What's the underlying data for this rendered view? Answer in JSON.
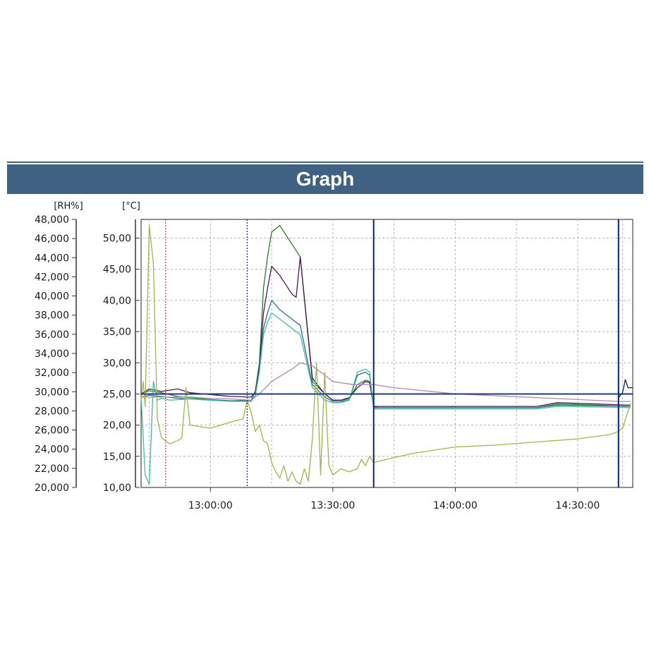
{
  "title": "Graph",
  "colors": {
    "banner": "#3f6283",
    "reference": "#1f3a8a",
    "marker": "#0b1f6b"
  },
  "chart_data": {
    "type": "line",
    "title": "Graph",
    "grid": true,
    "xaxis": {
      "range": [
        "12:43:00",
        "14:43:30"
      ],
      "ticks": [
        {
          "t": "13:00:00",
          "label": "13:00:00"
        },
        {
          "t": "13:30:00",
          "label": "13:30:00"
        },
        {
          "t": "14:00:00",
          "label": "14:00:00"
        },
        {
          "t": "14:30:00",
          "label": "14:30:00"
        }
      ],
      "minor_ticks": [
        "12:45:00",
        "13:15:00",
        "13:45:00",
        "14:15:00",
        "14:41:00"
      ]
    },
    "left_axis": {
      "unit": "[RH%]",
      "range": [
        20000,
        48000
      ],
      "ticks": [
        "20,000",
        "22,000",
        "24,000",
        "26,000",
        "28,000",
        "30,000",
        "32,000",
        "34,000",
        "36,000",
        "38,000",
        "40,000",
        "42,000",
        "44,000",
        "46,000",
        "48,000"
      ]
    },
    "right_axis": {
      "unit": "[°C]",
      "range": [
        10,
        53
      ],
      "ticks": [
        {
          "v": 10,
          "label": "10,00"
        },
        {
          "v": 15,
          "label": "15,00"
        },
        {
          "v": 20,
          "label": "20,00"
        },
        {
          "v": 25,
          "label": "25,00"
        },
        {
          "v": 30,
          "label": "30,00"
        },
        {
          "v": 35,
          "label": "35,00"
        },
        {
          "v": 40,
          "label": "40,00"
        },
        {
          "v": 45,
          "label": "45,00"
        },
        {
          "v": 50,
          "label": "50,00"
        }
      ]
    },
    "reference_line": {
      "y": 25.0,
      "color": "#1f3a8a"
    },
    "markers": [
      {
        "t": "12:49:00",
        "style": "dotted",
        "color": "#b04a4a"
      },
      {
        "t": "13:09:00",
        "style": "dotted",
        "color": "#1a2a60"
      },
      {
        "t": "13:40:00",
        "style": "solid",
        "color": "#0b1f6b"
      },
      {
        "t": "14:40:00",
        "style": "solid",
        "color": "#0b1f6b"
      }
    ],
    "series": [
      {
        "color": "#2e7d32",
        "t": [
          "12:43:00",
          "12:45:00",
          "12:48:00",
          "12:52:00",
          "12:55:00",
          "13:00:00",
          "13:05:00",
          "13:10:00",
          "13:11:00",
          "13:12:00",
          "13:13:00",
          "13:14:00",
          "13:15:00",
          "13:17:00",
          "13:19:00",
          "13:20:00",
          "13:21:00",
          "13:22:00",
          "13:25:00",
          "13:28:00",
          "13:30:00",
          "13:32:00",
          "13:34:00",
          "13:36:00",
          "13:38:00",
          "13:39:00",
          "13:40:00",
          "13:41:00",
          "13:45:00",
          "14:00:00",
          "14:20:00",
          "14:25:00",
          "14:35:00",
          "14:42:00",
          "14:43:00"
        ],
        "y": [
          25.0,
          25.5,
          25.2,
          24.6,
          24.4,
          24.1,
          23.9,
          24.0,
          25.5,
          30.0,
          42.0,
          47.0,
          51.0,
          52.0,
          50.0,
          49.0,
          48.0,
          47.0,
          27.0,
          25.0,
          24.0,
          24.0,
          24.2,
          26.5,
          27.2,
          27.0,
          23.0,
          22.8,
          22.8,
          22.8,
          22.8,
          23.4,
          23.2,
          23.0,
          23.0
        ]
      },
      {
        "color": "#4a1a4f",
        "t": [
          "12:43:00",
          "12:45:00",
          "12:48:00",
          "12:52:00",
          "12:55:00",
          "13:00:00",
          "13:05:00",
          "13:10:00",
          "13:11:00",
          "13:12:00",
          "13:13:00",
          "13:14:00",
          "13:15:00",
          "13:17:00",
          "13:19:00",
          "13:20:00",
          "13:21:00",
          "13:22:00",
          "13:25:00",
          "13:28:00",
          "13:30:00",
          "13:32:00",
          "13:34:00",
          "13:36:00",
          "13:38:00",
          "13:39:00",
          "13:40:00",
          "13:41:00",
          "13:45:00",
          "14:00:00",
          "14:20:00",
          "14:25:00",
          "14:35:00",
          "14:42:00",
          "14:43:00"
        ],
        "y": [
          25.0,
          25.8,
          25.4,
          25.8,
          25.2,
          24.9,
          24.6,
          24.5,
          25.3,
          29.5,
          38.0,
          42.0,
          45.5,
          44.0,
          42.0,
          41.0,
          40.5,
          47.0,
          27.5,
          25.0,
          24.0,
          24.0,
          24.4,
          26.0,
          27.0,
          26.8,
          23.0,
          23.0,
          23.0,
          23.0,
          23.0,
          23.6,
          23.4,
          23.2,
          23.2
        ]
      },
      {
        "color": "#2f6e8f",
        "t": [
          "12:43:00",
          "12:45:00",
          "12:48:00",
          "12:52:00",
          "12:55:00",
          "13:00:00",
          "13:05:00",
          "13:10:00",
          "13:11:00",
          "13:12:00",
          "13:13:00",
          "13:14:00",
          "13:15:00",
          "13:17:00",
          "13:19:00",
          "13:20:00",
          "13:21:00",
          "13:22:00",
          "13:25:00",
          "13:28:00",
          "13:30:00",
          "13:32:00",
          "13:34:00",
          "13:36:00",
          "13:38:00",
          "13:39:00",
          "13:40:00",
          "13:41:00",
          "13:45:00",
          "14:00:00",
          "14:20:00",
          "14:25:00",
          "14:35:00",
          "14:42:00",
          "14:43:00"
        ],
        "y": [
          24.5,
          24.8,
          24.6,
          24.3,
          24.2,
          24.0,
          23.9,
          23.9,
          24.8,
          29.0,
          35.5,
          38.0,
          40.0,
          38.5,
          37.5,
          37.0,
          36.5,
          36.0,
          26.5,
          24.5,
          23.8,
          23.8,
          24.0,
          28.0,
          28.5,
          28.0,
          22.8,
          22.8,
          22.8,
          22.8,
          22.8,
          23.2,
          23.1,
          23.0,
          23.0
        ]
      },
      {
        "color": "#3bbf9f",
        "t": [
          "12:43:00",
          "12:44:00",
          "12:45:00",
          "12:46:00",
          "12:47:00",
          "12:48:00",
          "12:50:00",
          "12:55:00",
          "13:00:00",
          "13:05:00",
          "13:10:00",
          "13:11:00",
          "13:12:00",
          "13:13:00",
          "13:14:00",
          "13:15:00",
          "13:17:00",
          "13:19:00",
          "13:20:00",
          "13:21:00",
          "13:22:00",
          "13:25:00",
          "13:28:00",
          "13:30:00",
          "13:32:00",
          "13:34:00",
          "13:36:00",
          "13:38:00",
          "13:39:00",
          "13:40:00",
          "13:41:00",
          "13:45:00",
          "14:00:00",
          "14:20:00",
          "14:25:00",
          "14:35:00",
          "14:42:00",
          "14:43:00"
        ],
        "y": [
          24.5,
          12.0,
          10.5,
          27.0,
          24.0,
          24.3,
          24.0,
          24.2,
          24.0,
          23.8,
          23.8,
          24.8,
          28.5,
          34.5,
          36.5,
          38.0,
          37.0,
          36.0,
          35.5,
          35.0,
          34.5,
          26.0,
          24.0,
          23.6,
          23.6,
          24.0,
          28.5,
          29.0,
          28.5,
          22.6,
          22.6,
          22.6,
          22.6,
          22.6,
          23.0,
          22.9,
          22.8,
          22.8
        ]
      },
      {
        "color": "#b08ab3",
        "t": [
          "12:43:00",
          "12:48:00",
          "12:55:00",
          "13:00:00",
          "13:05:00",
          "13:10:00",
          "13:12:00",
          "13:15:00",
          "13:20:00",
          "13:22:00",
          "13:25:00",
          "13:28:00",
          "13:30:00",
          "13:35:00",
          "13:40:00",
          "13:45:00",
          "14:00:00",
          "14:20:00",
          "14:40:00",
          "14:43:00"
        ],
        "y": [
          24.5,
          24.5,
          24.5,
          24.3,
          24.2,
          24.0,
          25.0,
          27.0,
          29.0,
          30.0,
          29.5,
          28.0,
          27.0,
          26.5,
          26.5,
          26.0,
          25.0,
          24.4,
          23.8,
          23.8
        ]
      },
      {
        "color": "#9fb54a",
        "t": [
          "12:43:00",
          "12:43:30",
          "12:44:00",
          "12:45:00",
          "12:46:00",
          "12:47:00",
          "12:48:00",
          "12:50:00",
          "12:52:00",
          "12:53:00",
          "12:54:00",
          "12:55:00",
          "13:00:00",
          "13:05:00",
          "13:08:00",
          "13:09:00",
          "13:10:00",
          "13:11:00",
          "13:12:00",
          "13:13:00",
          "13:14:00",
          "13:15:00",
          "13:16:00",
          "13:17:00",
          "13:18:00",
          "13:19:00",
          "13:20:00",
          "13:21:00",
          "13:22:00",
          "13:23:00",
          "13:24:00",
          "13:25:00",
          "13:26:00",
          "13:27:00",
          "13:28:00",
          "13:29:00",
          "13:30:00",
          "13:32:00",
          "13:34:00",
          "13:36:00",
          "13:37:00",
          "13:38:00",
          "13:39:00",
          "13:40:00",
          "13:45:00",
          "13:50:00",
          "14:00:00",
          "14:10:00",
          "14:20:00",
          "14:30:00",
          "14:38:00",
          "14:40:00",
          "14:41:00",
          "14:43:00"
        ],
        "y": [
          24.0,
          27.0,
          23.0,
          52.0,
          46.0,
          21.0,
          18.0,
          17.0,
          17.5,
          18.0,
          26.0,
          20.0,
          19.5,
          20.5,
          21.0,
          24.0,
          22.0,
          19.0,
          20.0,
          17.5,
          17.0,
          14.0,
          12.5,
          11.5,
          13.5,
          11.0,
          12.5,
          11.0,
          10.5,
          13.0,
          11.0,
          18.0,
          30.0,
          12.0,
          28.5,
          13.5,
          12.0,
          13.0,
          12.5,
          13.0,
          14.5,
          13.5,
          15.0,
          14.0,
          14.8,
          15.5,
          16.5,
          16.8,
          17.3,
          17.8,
          18.5,
          19.0,
          19.5,
          23.5
        ]
      },
      {
        "color": "#0b1f6b",
        "t": [
          "14:40:00",
          "14:41:00",
          "14:41:40",
          "14:42:20",
          "14:43:30"
        ],
        "y": [
          24.4,
          25.2,
          27.3,
          26.0,
          26.0
        ]
      }
    ]
  }
}
